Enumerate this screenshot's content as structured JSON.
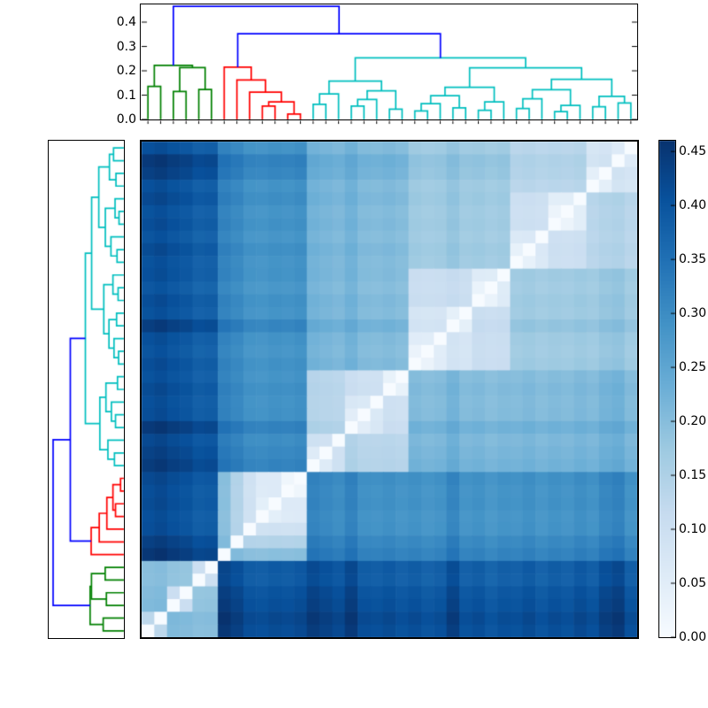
{
  "figure": {
    "background": "#ffffff"
  },
  "colors": {
    "link_green": "#008000",
    "link_red": "#ff0000",
    "link_cyan": "#00bfbf",
    "link_blue": "#0000ff",
    "axes_edge": "#000000"
  },
  "chart_data": {
    "type": "heatmap",
    "subtype": "hierarchical-clustering-clustermap",
    "panels": [
      "top-dendrogram",
      "left-dendrogram",
      "distance-matrix-heatmap",
      "colorbar"
    ],
    "matrix_size": 39,
    "leaf_count": 39,
    "cluster_sizes": {
      "green": 6,
      "red": 7,
      "cyan": 26
    },
    "leaf_clusters": {
      "green": [
        0,
        5
      ],
      "red": [
        6,
        12
      ],
      "cyan": [
        13,
        38
      ]
    },
    "root_height": 0.465,
    "above_threshold_link_color": "blue",
    "linkage": [
      {
        "id": "M0",
        "children": [
          "L0",
          "L1"
        ],
        "height": 0.136,
        "color": "green"
      },
      {
        "id": "M1",
        "children": [
          "L2",
          "L3"
        ],
        "height": 0.115,
        "color": "green"
      },
      {
        "id": "M2",
        "children": [
          "L4",
          "L5"
        ],
        "height": 0.123,
        "color": "green"
      },
      {
        "id": "M3",
        "children": [
          "M1",
          "M2"
        ],
        "height": 0.213,
        "color": "green"
      },
      {
        "id": "M4",
        "children": [
          "M0",
          "M3"
        ],
        "height": 0.222,
        "color": "green"
      },
      {
        "id": "M5",
        "children": [
          "L9",
          "L10"
        ],
        "height": 0.055,
        "color": "red"
      },
      {
        "id": "M6",
        "children": [
          "L11",
          "L12"
        ],
        "height": 0.022,
        "color": "red"
      },
      {
        "id": "M7",
        "children": [
          "M5",
          "M6"
        ],
        "height": 0.072,
        "color": "red"
      },
      {
        "id": "M8",
        "children": [
          "L8",
          "M7"
        ],
        "height": 0.112,
        "color": "red"
      },
      {
        "id": "M9",
        "children": [
          "L7",
          "M8"
        ],
        "height": 0.162,
        "color": "red"
      },
      {
        "id": "M10",
        "children": [
          "L6",
          "M9"
        ],
        "height": 0.215,
        "color": "red"
      },
      {
        "id": "M11",
        "children": [
          "L13",
          "L14"
        ],
        "height": 0.062,
        "color": "cyan"
      },
      {
        "id": "M12",
        "children": [
          "M11",
          "L15"
        ],
        "height": 0.105,
        "color": "cyan"
      },
      {
        "id": "M13",
        "children": [
          "L16",
          "L17"
        ],
        "height": 0.055,
        "color": "cyan"
      },
      {
        "id": "M14",
        "children": [
          "M13",
          "L18"
        ],
        "height": 0.082,
        "color": "cyan"
      },
      {
        "id": "M15",
        "children": [
          "L19",
          "L20"
        ],
        "height": 0.042,
        "color": "cyan"
      },
      {
        "id": "M16",
        "children": [
          "M14",
          "M15"
        ],
        "height": 0.118,
        "color": "cyan"
      },
      {
        "id": "M17",
        "children": [
          "M12",
          "M16"
        ],
        "height": 0.158,
        "color": "cyan"
      },
      {
        "id": "M18",
        "children": [
          "L21",
          "L22"
        ],
        "height": 0.035,
        "color": "cyan"
      },
      {
        "id": "M19",
        "children": [
          "M18",
          "L23"
        ],
        "height": 0.065,
        "color": "cyan"
      },
      {
        "id": "M20",
        "children": [
          "L24",
          "L25"
        ],
        "height": 0.048,
        "color": "cyan"
      },
      {
        "id": "M21",
        "children": [
          "M19",
          "M20"
        ],
        "height": 0.098,
        "color": "cyan"
      },
      {
        "id": "M22",
        "children": [
          "L26",
          "L27"
        ],
        "height": 0.038,
        "color": "cyan"
      },
      {
        "id": "M23",
        "children": [
          "M22",
          "L28"
        ],
        "height": 0.072,
        "color": "cyan"
      },
      {
        "id": "M24",
        "children": [
          "M21",
          "M23"
        ],
        "height": 0.132,
        "color": "cyan"
      },
      {
        "id": "M25",
        "children": [
          "L29",
          "L30"
        ],
        "height": 0.045,
        "color": "cyan"
      },
      {
        "id": "M26",
        "children": [
          "M25",
          "L31"
        ],
        "height": 0.085,
        "color": "cyan"
      },
      {
        "id": "M27",
        "children": [
          "L32",
          "L33"
        ],
        "height": 0.032,
        "color": "cyan"
      },
      {
        "id": "M28",
        "children": [
          "M27",
          "L34"
        ],
        "height": 0.058,
        "color": "cyan"
      },
      {
        "id": "M29",
        "children": [
          "M26",
          "M28"
        ],
        "height": 0.122,
        "color": "cyan"
      },
      {
        "id": "M30",
        "children": [
          "L35",
          "L36"
        ],
        "height": 0.052,
        "color": "cyan"
      },
      {
        "id": "M31",
        "children": [
          "L37",
          "L38"
        ],
        "height": 0.068,
        "color": "cyan"
      },
      {
        "id": "M32",
        "children": [
          "M30",
          "M31"
        ],
        "height": 0.095,
        "color": "cyan"
      },
      {
        "id": "M33",
        "children": [
          "M29",
          "M32"
        ],
        "height": 0.165,
        "color": "cyan"
      },
      {
        "id": "M34",
        "children": [
          "M24",
          "M33"
        ],
        "height": 0.212,
        "color": "cyan"
      },
      {
        "id": "M35",
        "children": [
          "M17",
          "M34"
        ],
        "height": 0.253,
        "color": "cyan"
      },
      {
        "id": "M36",
        "children": [
          "M10",
          "M35"
        ],
        "height": 0.352,
        "color": "blue"
      },
      {
        "id": "M37",
        "children": [
          "M4",
          "M36"
        ],
        "height": 0.465,
        "color": "blue"
      }
    ],
    "top_dendrogram": {
      "yticks": [
        0,
        0.1,
        0.2,
        0.3,
        0.4
      ],
      "ytick_labels": [
        "0.0",
        "0.1",
        "0.2",
        "0.3",
        "0.4"
      ],
      "ylim": [
        0,
        0.473
      ]
    },
    "left_dendrogram": {
      "orientation": "left",
      "leaf_order": "reversed-vs-top"
    },
    "heatmap": {
      "vmin": 0,
      "vmax": 0.465,
      "diagonal_value": 0,
      "colormap": "Blues",
      "value_model": {
        "rule": "cophenetic-distance-times-shade",
        "shade_base": 0.65,
        "shade_gain": 0.175,
        "leaf_shade": [
          0.85,
          0.95,
          0.8,
          0.7,
          0.5,
          0.55,
          1.0,
          0.8,
          0.5,
          0.45,
          0.55,
          0.5,
          0.6,
          0.9,
          0.75,
          0.6,
          0.95,
          0.5,
          0.45,
          0.55,
          0.4,
          0.5,
          0.35,
          0.45,
          0.85,
          0.4,
          0.5,
          0.3,
          0.45,
          0.4,
          0.55,
          0.35,
          0.5,
          0.4,
          0.6,
          0.45,
          0.8,
          0.95,
          0.45
        ]
      }
    },
    "colorbar": {
      "min": 0,
      "max": 0.46,
      "ticks": [
        0.0,
        0.05,
        0.1,
        0.15,
        0.2,
        0.25,
        0.3,
        0.35,
        0.4,
        0.45
      ],
      "tick_labels": [
        "0.00",
        "0.05",
        "0.10",
        "0.15",
        "0.20",
        "0.25",
        "0.30",
        "0.35",
        "0.40",
        "0.45"
      ]
    },
    "colormap_stops": [
      "#f7fbff",
      "#deebf7",
      "#c6dbef",
      "#9ecae1",
      "#6baed6",
      "#4292c6",
      "#2171b5",
      "#08519c",
      "#08306b"
    ]
  }
}
